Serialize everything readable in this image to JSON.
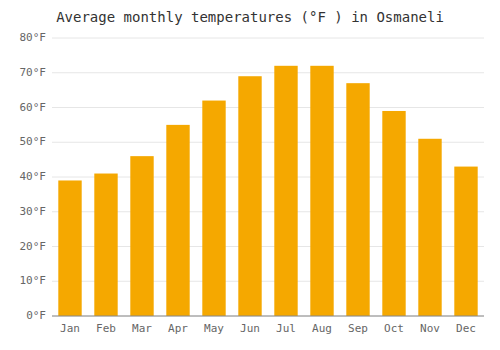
{
  "chart_data": {
    "type": "bar",
    "title": "Average monthly temperatures (°F ) in Osmaneli",
    "categories": [
      "Jan",
      "Feb",
      "Mar",
      "Apr",
      "May",
      "Jun",
      "Jul",
      "Aug",
      "Sep",
      "Oct",
      "Nov",
      "Dec"
    ],
    "values": [
      39,
      41,
      46,
      55,
      62,
      69,
      72,
      72,
      67,
      59,
      51,
      43
    ],
    "color": "#F5A800",
    "ylim": [
      0,
      80
    ],
    "yticks": [
      {
        "value": 0,
        "label": "0°F"
      },
      {
        "value": 10,
        "label": "10°F"
      },
      {
        "value": 20,
        "label": "20°F"
      },
      {
        "value": 30,
        "label": "30°F"
      },
      {
        "value": 40,
        "label": "40°F"
      },
      {
        "value": 50,
        "label": "50°F"
      },
      {
        "value": 60,
        "label": "60°F"
      },
      {
        "value": 70,
        "label": "70°F"
      },
      {
        "value": 80,
        "label": "80°F"
      }
    ],
    "grid": true
  }
}
